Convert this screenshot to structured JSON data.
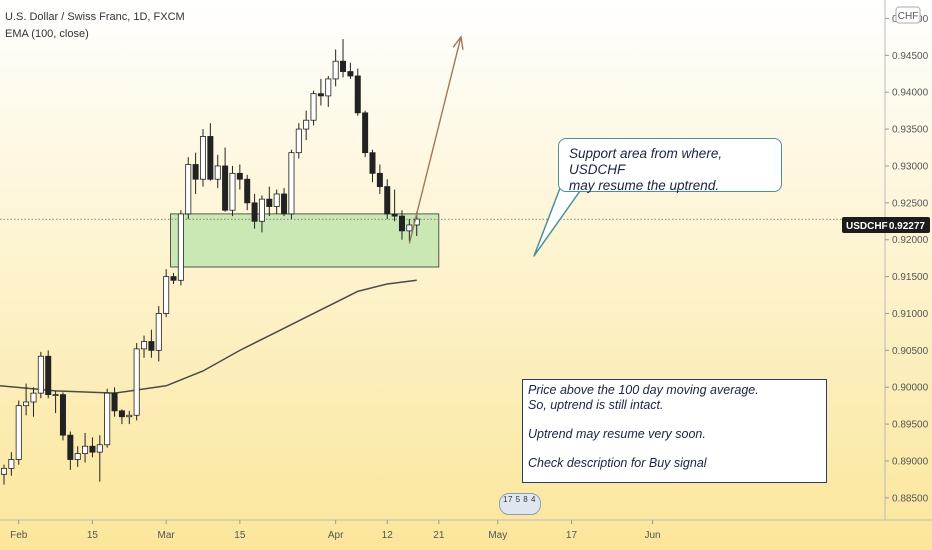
{
  "header": {
    "symbol_line": "U.S. Dollar / Swiss Franc, 1D, FXCM",
    "indicator_line": "EMA (100, close)"
  },
  "colors": {
    "bg_top": "#ffffff",
    "bg_bottom": "#fbe69a",
    "zone_fill": "#c9e8b4",
    "zone_border": "#333333",
    "ema_line": "#4a4a4a",
    "arrow": "#a0785a",
    "callout_border": "#4c8f9c",
    "up_body": "#ffffff",
    "down_body": "#222222"
  },
  "chart_data": {
    "type": "candlestick",
    "title": "U.S. Dollar / Swiss Franc, 1D, FXCM",
    "currency": "CHF",
    "ylim": [
      0.882,
      0.9525
    ],
    "y_ticks": [
      0.885,
      0.89,
      0.895,
      0.9,
      0.905,
      0.91,
      0.915,
      0.92,
      0.925,
      0.93,
      0.935,
      0.94,
      0.945,
      0.95
    ],
    "y_tick_labels": [
      "0.88500",
      "0.89000",
      "0.89500",
      "0.90000",
      "0.90500",
      "0.91000",
      "0.91500",
      "0.92000",
      "0.92500",
      "0.93000",
      "0.93500",
      "0.94000",
      "0.94500",
      "0.95000"
    ],
    "x_ticks": [
      {
        "label": "Feb",
        "date": "2021-02-01"
      },
      {
        "label": "15",
        "date": "2021-02-15"
      },
      {
        "label": "Mar",
        "date": "2021-03-01"
      },
      {
        "label": "15",
        "date": "2021-03-15"
      },
      {
        "label": "Apr",
        "date": "2021-04-01"
      },
      {
        "label": "12",
        "date": "2021-04-12"
      },
      {
        "label": "21",
        "date": "2021-04-21"
      },
      {
        "label": "May",
        "date": "2021-05-03"
      },
      {
        "label": "17",
        "date": "2021-05-17"
      },
      {
        "label": "Jun",
        "date": "2021-06-01"
      }
    ],
    "last_price": {
      "symbol": "USDCHF",
      "value": "0.92277"
    },
    "candles": [
      {
        "date": "2021-01-28",
        "o": 0.8882,
        "h": 0.8895,
        "l": 0.8868,
        "c": 0.889
      },
      {
        "date": "2021-01-29",
        "o": 0.889,
        "h": 0.8912,
        "l": 0.888,
        "c": 0.8902
      },
      {
        "date": "2021-02-01",
        "o": 0.8902,
        "h": 0.8982,
        "l": 0.8895,
        "c": 0.8975
      },
      {
        "date": "2021-02-02",
        "o": 0.8975,
        "h": 0.9005,
        "l": 0.8962,
        "c": 0.898
      },
      {
        "date": "2021-02-03",
        "o": 0.898,
        "h": 0.9,
        "l": 0.896,
        "c": 0.8992
      },
      {
        "date": "2021-02-04",
        "o": 0.8992,
        "h": 0.9048,
        "l": 0.8985,
        "c": 0.9042
      },
      {
        "date": "2021-02-05",
        "o": 0.9042,
        "h": 0.905,
        "l": 0.8985,
        "c": 0.899
      },
      {
        "date": "2021-02-08",
        "o": 0.899,
        "h": 0.8995,
        "l": 0.8965,
        "c": 0.899
      },
      {
        "date": "2021-02-09",
        "o": 0.899,
        "h": 0.8993,
        "l": 0.8928,
        "c": 0.8935
      },
      {
        "date": "2021-02-10",
        "o": 0.8935,
        "h": 0.894,
        "l": 0.8888,
        "c": 0.8902
      },
      {
        "date": "2021-02-11",
        "o": 0.8902,
        "h": 0.892,
        "l": 0.8892,
        "c": 0.891
      },
      {
        "date": "2021-02-12",
        "o": 0.891,
        "h": 0.8938,
        "l": 0.8898,
        "c": 0.892
      },
      {
        "date": "2021-02-15",
        "o": 0.892,
        "h": 0.8932,
        "l": 0.8905,
        "c": 0.8912
      },
      {
        "date": "2021-02-16",
        "o": 0.8912,
        "h": 0.8935,
        "l": 0.8872,
        "c": 0.8922
      },
      {
        "date": "2021-02-17",
        "o": 0.8922,
        "h": 0.8998,
        "l": 0.8918,
        "c": 0.8992
      },
      {
        "date": "2021-02-18",
        "o": 0.8992,
        "h": 0.9,
        "l": 0.896,
        "c": 0.8968
      },
      {
        "date": "2021-02-19",
        "o": 0.8968,
        "h": 0.897,
        "l": 0.895,
        "c": 0.896
      },
      {
        "date": "2021-02-22",
        "o": 0.896,
        "h": 0.8968,
        "l": 0.895,
        "c": 0.8962
      },
      {
        "date": "2021-02-23",
        "o": 0.8962,
        "h": 0.906,
        "l": 0.8955,
        "c": 0.9052
      },
      {
        "date": "2021-02-24",
        "o": 0.9052,
        "h": 0.907,
        "l": 0.904,
        "c": 0.9062
      },
      {
        "date": "2021-02-25",
        "o": 0.9062,
        "h": 0.9078,
        "l": 0.904,
        "c": 0.905
      },
      {
        "date": "2021-02-26",
        "o": 0.905,
        "h": 0.911,
        "l": 0.9035,
        "c": 0.91
      },
      {
        "date": "2021-03-01",
        "o": 0.91,
        "h": 0.916,
        "l": 0.9095,
        "c": 0.915
      },
      {
        "date": "2021-03-02",
        "o": 0.915,
        "h": 0.9155,
        "l": 0.914,
        "c": 0.9145
      },
      {
        "date": "2021-03-03",
        "o": 0.9145,
        "h": 0.924,
        "l": 0.9138,
        "c": 0.9235
      },
      {
        "date": "2021-03-04",
        "o": 0.9235,
        "h": 0.9312,
        "l": 0.9228,
        "c": 0.9302
      },
      {
        "date": "2021-03-05",
        "o": 0.9302,
        "h": 0.9318,
        "l": 0.9262,
        "c": 0.9282
      },
      {
        "date": "2021-03-08",
        "o": 0.9282,
        "h": 0.935,
        "l": 0.9272,
        "c": 0.934
      },
      {
        "date": "2021-03-09",
        "o": 0.934,
        "h": 0.9358,
        "l": 0.928,
        "c": 0.9282
      },
      {
        "date": "2021-03-10",
        "o": 0.9282,
        "h": 0.9315,
        "l": 0.927,
        "c": 0.93
      },
      {
        "date": "2021-03-11",
        "o": 0.93,
        "h": 0.9325,
        "l": 0.9238,
        "c": 0.924
      },
      {
        "date": "2021-03-12",
        "o": 0.924,
        "h": 0.93,
        "l": 0.9232,
        "c": 0.929
      },
      {
        "date": "2021-03-15",
        "o": 0.929,
        "h": 0.9302,
        "l": 0.9268,
        "c": 0.9282
      },
      {
        "date": "2021-03-16",
        "o": 0.9282,
        "h": 0.9288,
        "l": 0.924,
        "c": 0.925
      },
      {
        "date": "2021-03-17",
        "o": 0.925,
        "h": 0.9262,
        "l": 0.9215,
        "c": 0.9225
      },
      {
        "date": "2021-03-18",
        "o": 0.9225,
        "h": 0.926,
        "l": 0.921,
        "c": 0.9255
      },
      {
        "date": "2021-03-19",
        "o": 0.9255,
        "h": 0.9272,
        "l": 0.9232,
        "c": 0.9245
      },
      {
        "date": "2021-03-22",
        "o": 0.9245,
        "h": 0.9268,
        "l": 0.9235,
        "c": 0.9262
      },
      {
        "date": "2021-03-23",
        "o": 0.9262,
        "h": 0.927,
        "l": 0.9232,
        "c": 0.9235
      },
      {
        "date": "2021-03-24",
        "o": 0.9235,
        "h": 0.9322,
        "l": 0.9228,
        "c": 0.9318
      },
      {
        "date": "2021-03-25",
        "o": 0.9318,
        "h": 0.9358,
        "l": 0.931,
        "c": 0.935
      },
      {
        "date": "2021-03-26",
        "o": 0.935,
        "h": 0.9375,
        "l": 0.9335,
        "c": 0.9362
      },
      {
        "date": "2021-03-29",
        "o": 0.9362,
        "h": 0.9402,
        "l": 0.9355,
        "c": 0.9398
      },
      {
        "date": "2021-03-30",
        "o": 0.9398,
        "h": 0.9418,
        "l": 0.9382,
        "c": 0.9395
      },
      {
        "date": "2021-03-31",
        "o": 0.9395,
        "h": 0.9422,
        "l": 0.938,
        "c": 0.9418
      },
      {
        "date": "2021-04-01",
        "o": 0.9418,
        "h": 0.9458,
        "l": 0.9408,
        "c": 0.9442
      },
      {
        "date": "2021-04-02",
        "o": 0.9442,
        "h": 0.9472,
        "l": 0.942,
        "c": 0.9428
      },
      {
        "date": "2021-04-05",
        "o": 0.9428,
        "h": 0.944,
        "l": 0.9418,
        "c": 0.9422
      },
      {
        "date": "2021-04-06",
        "o": 0.9422,
        "h": 0.9432,
        "l": 0.9368,
        "c": 0.9372
      },
      {
        "date": "2021-04-07",
        "o": 0.9372,
        "h": 0.9375,
        "l": 0.9312,
        "c": 0.9318
      },
      {
        "date": "2021-04-08",
        "o": 0.9318,
        "h": 0.9322,
        "l": 0.9278,
        "c": 0.929
      },
      {
        "date": "2021-04-09",
        "o": 0.929,
        "h": 0.9302,
        "l": 0.9262,
        "c": 0.9272
      },
      {
        "date": "2021-04-12",
        "o": 0.9272,
        "h": 0.9282,
        "l": 0.9228,
        "c": 0.9235
      },
      {
        "date": "2021-04-13",
        "o": 0.9235,
        "h": 0.9268,
        "l": 0.9225,
        "c": 0.9232
      },
      {
        "date": "2021-04-14",
        "o": 0.9232,
        "h": 0.924,
        "l": 0.92,
        "c": 0.9212
      },
      {
        "date": "2021-04-15",
        "o": 0.9212,
        "h": 0.9228,
        "l": 0.9198,
        "c": 0.922
      },
      {
        "date": "2021-04-16",
        "o": 0.922,
        "h": 0.9238,
        "l": 0.9205,
        "c": 0.9228
      }
    ],
    "ema_series": [
      {
        "date": "2021-01-28",
        "v": 0.9002
      },
      {
        "date": "2021-02-08",
        "v": 0.8995
      },
      {
        "date": "2021-02-18",
        "v": 0.8992
      },
      {
        "date": "2021-03-01",
        "v": 0.9002
      },
      {
        "date": "2021-03-08",
        "v": 0.9022
      },
      {
        "date": "2021-03-15",
        "v": 0.905
      },
      {
        "date": "2021-03-22",
        "v": 0.9075
      },
      {
        "date": "2021-03-29",
        "v": 0.91
      },
      {
        "date": "2021-04-01",
        "v": 0.9115
      },
      {
        "date": "2021-04-06",
        "v": 0.913
      },
      {
        "date": "2021-04-12",
        "v": 0.914
      },
      {
        "date": "2021-04-16",
        "v": 0.9145
      }
    ],
    "support_zone": {
      "from": "2021-03-02",
      "to": "2021-04-21",
      "low": 0.9163,
      "high": 0.9235
    },
    "arrow": {
      "from": {
        "date": "2021-04-15",
        "value": 0.9195
      },
      "to": {
        "date": "2021-04-26",
        "value": 0.9475
      }
    },
    "annotations": [
      {
        "id": "callout",
        "lines": [
          "Support area from where, USDCHF",
          "may resume the uptrend."
        ]
      },
      {
        "id": "textbox",
        "lines": [
          "Price above the 100 day moving average.",
          "So, uptrend is still intact.",
          "",
          "Uptrend may resume very soon.",
          "",
          "Check description for Buy signal"
        ]
      }
    ]
  },
  "events_badge": "17 5 8 4"
}
